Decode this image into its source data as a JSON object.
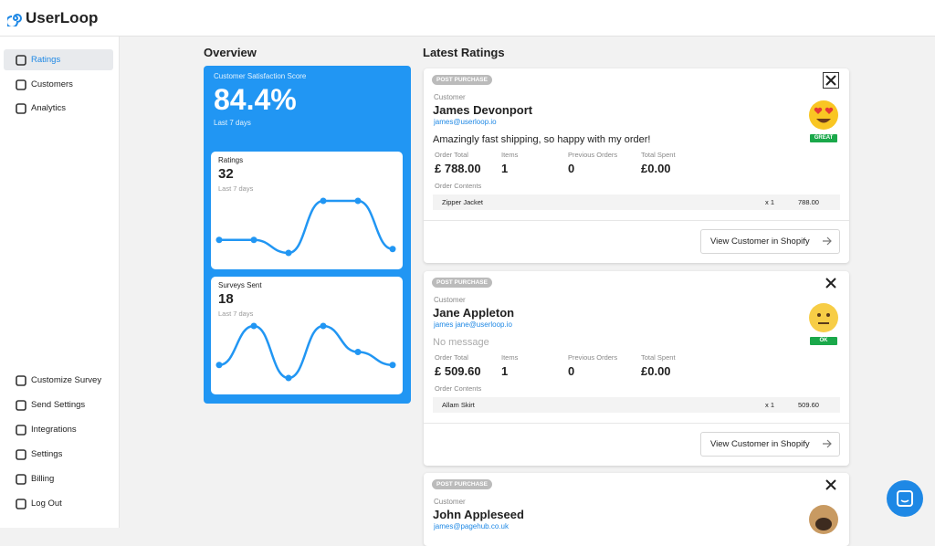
{
  "header": {
    "logo": "UserLoop"
  },
  "sidebar": {
    "top": [
      "Ratings",
      "Customers",
      "Analytics"
    ],
    "bottom": [
      "Customize Survey",
      "Send Settings",
      "Integrations",
      "Settings",
      "Billing",
      "Log Out"
    ]
  },
  "overview": {
    "title": "Overview",
    "csat": {
      "label": "Customer Satisfaction Score",
      "value": "84.4%",
      "period": "Last 7 days"
    },
    "cards": [
      {
        "label": "Ratings",
        "value": "32",
        "period": "Last 7 days",
        "series": [
          1,
          1,
          0,
          4,
          4,
          0.3
        ]
      },
      {
        "label": "Surveys Sent",
        "value": "18",
        "period": "Last 7 days",
        "series": [
          1,
          4,
          0,
          4,
          2,
          1
        ]
      }
    ]
  },
  "ratings": {
    "title": "Latest Ratings",
    "labels": {
      "customer": "Customer",
      "order_total": "Order Total",
      "items": "Items",
      "previous_orders": "Previous Orders",
      "total_spent": "Total Spent",
      "order_contents": "Order Contents",
      "button": "View Customer in Shopify"
    },
    "items": [
      {
        "tag": "POST PURCHASE",
        "name": "James Devonport",
        "email": "james@userloop.io",
        "message": "Amazingly fast shipping, so happy with my order!",
        "badge": "GREAT",
        "order_total": "£ 788.00",
        "items": "1",
        "previous_orders": "0",
        "total_spent": "£0.00",
        "products": [
          {
            "name": "Zipper Jacket",
            "qty": "x 1",
            "price": "788.00"
          }
        ]
      },
      {
        "tag": "POST PURCHASE",
        "name": "Jane Appleton",
        "email": "james jane@userloop.io",
        "message": "No message",
        "badge": "OK",
        "order_total": "£ 509.60",
        "items": "1",
        "previous_orders": "0",
        "total_spent": "£0.00",
        "products": [
          {
            "name": "Allam Skirt",
            "qty": "x 1",
            "price": "509.60"
          }
        ]
      },
      {
        "tag": "POST PURCHASE",
        "name": "John Appleseed",
        "email": "james@pagehub.co.uk"
      }
    ]
  }
}
